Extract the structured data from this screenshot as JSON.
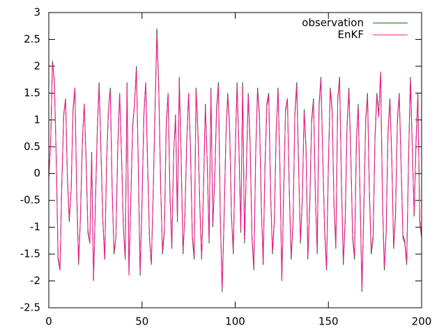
{
  "chart_data": {
    "type": "line",
    "x": [
      0,
      1,
      2,
      3,
      4,
      5,
      6,
      7,
      8,
      9,
      10,
      11,
      12,
      13,
      14,
      15,
      16,
      17,
      18,
      19,
      20,
      21,
      22,
      23,
      24,
      25,
      26,
      27,
      28,
      29,
      30,
      31,
      32,
      33,
      34,
      35,
      36,
      37,
      38,
      39,
      40,
      41,
      42,
      43,
      44,
      45,
      46,
      47,
      48,
      49,
      50,
      51,
      52,
      53,
      54,
      55,
      56,
      57,
      58,
      59,
      60,
      61,
      62,
      63,
      64,
      65,
      66,
      67,
      68,
      69,
      70,
      71,
      72,
      73,
      74,
      75,
      76,
      77,
      78,
      79,
      80,
      81,
      82,
      83,
      84,
      85,
      86,
      87,
      88,
      89,
      90,
      91,
      92,
      93,
      94,
      95,
      96,
      97,
      98,
      99,
      100,
      101,
      102,
      103,
      104,
      105,
      106,
      107,
      108,
      109,
      110,
      111,
      112,
      113,
      114,
      115,
      116,
      117,
      118,
      119,
      120,
      121,
      122,
      123,
      124,
      125,
      126,
      127,
      128,
      129,
      130,
      131,
      132,
      133,
      134,
      135,
      136,
      137,
      138,
      139,
      140,
      141,
      142,
      143,
      144,
      145,
      146,
      147,
      148,
      149,
      150,
      151,
      152,
      153,
      154,
      155,
      156,
      157,
      158,
      159,
      160,
      161,
      162,
      163,
      164,
      165,
      166,
      167,
      168,
      169,
      170,
      171,
      172,
      173,
      174,
      175,
      176,
      177,
      178,
      179,
      180,
      181,
      182,
      183,
      184,
      185,
      186,
      187,
      188,
      189,
      190,
      191,
      192,
      193,
      194,
      195,
      196,
      197,
      198,
      199,
      200
    ],
    "series": [
      {
        "name": "observation",
        "color": "#006400",
        "values": [
          -0.1,
          0.6,
          2.1,
          1.7,
          0.3,
          -1.6,
          -1.8,
          -0.2,
          1.1,
          1.4,
          -0.1,
          -0.9,
          -0.3,
          1.2,
          1.6,
          -0.4,
          -1.7,
          -0.8,
          0.6,
          1.3,
          0.3,
          -1.1,
          -1.3,
          0.4,
          -2.0,
          -0.6,
          0.8,
          1.7,
          0.4,
          -0.9,
          -1.6,
          0.2,
          1.2,
          1.6,
          -0.3,
          -1.5,
          -1.2,
          0.5,
          1.5,
          0.4,
          -1.0,
          -1.6,
          1.7,
          -1.9,
          -0.5,
          0.9,
          1.3,
          2.0,
          0.2,
          -1.9,
          -0.6,
          1.1,
          1.7,
          0.2,
          -1.2,
          -1.7,
          -0.4,
          1.2,
          2.7,
          1.6,
          -0.2,
          -1.5,
          -1.1,
          0.9,
          1.5,
          -0.4,
          -1.4,
          0.4,
          1.1,
          -0.9,
          1.8,
          0.3,
          -1.5,
          -0.8,
          0.6,
          1.5,
          0.5,
          -1.2,
          -1.6,
          1.6,
          0.8,
          -0.6,
          -1.6,
          -0.3,
          1.3,
          0.2,
          -1.3,
          1.6,
          -1.0,
          -0.1,
          1.2,
          1.7,
          -0.8,
          -2.2,
          -0.9,
          0.7,
          1.5,
          0.9,
          -0.8,
          -1.5,
          0.4,
          1.7,
          0.5,
          -1.1,
          1.7,
          -1.3,
          0.1,
          1.5,
          0.6,
          -1.2,
          -1.8,
          0.4,
          1.6,
          1.1,
          -0.6,
          -1.7,
          0.2,
          1.3,
          1.5,
          -0.4,
          -1.5,
          -0.9,
          0.8,
          1.6,
          0.1,
          -2.0,
          -0.4,
          1.2,
          1.4,
          -0.3,
          -1.6,
          -1.0,
          1.1,
          1.7,
          0.2,
          -1.3,
          -0.5,
          1.2,
          0.5,
          -1.6,
          -0.6,
          1.0,
          1.4,
          -0.4,
          -1.5,
          1.3,
          1.8,
          0.3,
          -1.1,
          -1.8,
          0.2,
          1.6,
          1.2,
          -0.6,
          -1.4,
          1.4,
          1.8,
          -0.2,
          -1.7,
          -0.9,
          0.9,
          1.6,
          0.4,
          -1.2,
          -1.6,
          0.6,
          1.3,
          -0.5,
          -2.2,
          -0.7,
          1.0,
          1.5,
          -0.4,
          -1.5,
          -1.2,
          0.7,
          1.5,
          1.1,
          1.9,
          -0.5,
          -1.8,
          -1.1,
          0.8,
          1.4,
          0.3,
          -1.4,
          -0.8,
          1.0,
          1.5,
          0.2,
          -1.2,
          -1.3,
          -1.7,
          0.3,
          1.8,
          0.5,
          -0.8,
          0.6,
          1.5,
          -0.9,
          -1.2
        ]
      },
      {
        "name": "EnKF",
        "color": "#ff1493",
        "values": [
          -0.05,
          0.55,
          2.05,
          1.75,
          0.25,
          -1.55,
          -1.8,
          -0.15,
          1.05,
          1.4,
          -0.05,
          -0.85,
          -0.3,
          1.15,
          1.6,
          -0.35,
          -1.65,
          -0.8,
          0.55,
          1.3,
          0.25,
          -1.05,
          -1.3,
          0.35,
          -2.0,
          -0.55,
          0.75,
          1.65,
          0.4,
          -0.85,
          -1.6,
          0.15,
          1.2,
          1.55,
          -0.3,
          -1.45,
          -1.2,
          0.45,
          1.5,
          0.35,
          -0.95,
          -1.6,
          1.7,
          -1.9,
          -0.45,
          0.85,
          1.3,
          1.95,
          0.2,
          -1.85,
          -0.55,
          1.05,
          1.7,
          0.15,
          -1.15,
          -1.7,
          -0.35,
          1.15,
          2.6,
          1.55,
          -0.2,
          -1.45,
          -1.05,
          0.85,
          1.5,
          -0.35,
          -1.35,
          0.4,
          1.05,
          -0.85,
          1.75,
          0.3,
          -1.45,
          -0.8,
          0.55,
          1.5,
          0.45,
          -1.15,
          -1.55,
          1.55,
          0.75,
          -0.55,
          -1.6,
          -0.25,
          1.25,
          0.2,
          -1.25,
          1.55,
          -0.95,
          -0.1,
          1.15,
          1.65,
          -0.75,
          -2.15,
          -0.85,
          0.65,
          1.45,
          0.85,
          -0.75,
          -1.45,
          0.35,
          1.65,
          0.45,
          -1.05,
          1.65,
          -1.25,
          0.1,
          1.45,
          0.55,
          -1.15,
          -1.75,
          0.35,
          1.55,
          1.05,
          -0.55,
          -1.65,
          0.15,
          1.25,
          1.45,
          -0.35,
          -1.45,
          -0.85,
          0.75,
          1.55,
          0.1,
          -2.0,
          -0.35,
          1.15,
          1.4,
          -0.25,
          -1.55,
          -0.95,
          1.05,
          1.65,
          0.15,
          -1.25,
          -0.45,
          1.15,
          0.45,
          -1.55,
          -0.55,
          0.95,
          1.35,
          -0.35,
          -1.45,
          1.25,
          1.75,
          0.25,
          -1.05,
          -1.75,
          0.15,
          1.55,
          1.15,
          -0.55,
          -1.35,
          1.35,
          1.75,
          -0.15,
          -1.65,
          -0.85,
          0.85,
          1.55,
          0.35,
          -1.15,
          -1.55,
          0.55,
          1.25,
          -0.45,
          -2.15,
          -0.65,
          0.95,
          1.45,
          -0.35,
          -1.45,
          -1.15,
          0.65,
          1.45,
          1.05,
          1.9,
          -0.45,
          -1.75,
          -1.05,
          0.75,
          1.35,
          0.25,
          -1.35,
          -0.75,
          0.95,
          1.45,
          0.15,
          -1.15,
          -1.25,
          -1.65,
          0.25,
          1.75,
          0.45,
          -0.75,
          0.55,
          1.45,
          -0.85,
          -1.15
        ]
      }
    ],
    "xlim": [
      0,
      200
    ],
    "xticks": [
      0,
      50,
      100,
      150,
      200
    ],
    "ylim": [
      -2.5,
      3
    ],
    "yticks": [
      -2.5,
      -2,
      -1.5,
      -1,
      -0.5,
      0,
      0.5,
      1,
      1.5,
      2,
      2.5,
      3
    ],
    "legend": "top right"
  }
}
